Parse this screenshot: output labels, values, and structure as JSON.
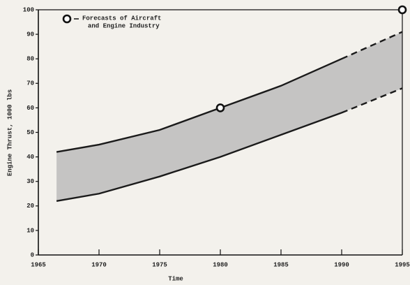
{
  "chart_data": {
    "type": "band",
    "xlabel": "Time",
    "ylabel": "Engine Thrust, 1000 lbs",
    "xlim": [
      1965,
      1995
    ],
    "ylim": [
      0,
      100
    ],
    "xticks": [
      1965,
      1970,
      1975,
      1980,
      1985,
      1990,
      1995
    ],
    "yticks": [
      0,
      10,
      20,
      30,
      40,
      50,
      60,
      70,
      80,
      90,
      100
    ],
    "band_color": "#bcbcbc",
    "line_color": "#1a1a1a",
    "dashed_from": 1990,
    "lines": [
      {
        "x": [
          1966.5,
          1970,
          1975,
          1980,
          1985,
          1990,
          1995
        ],
        "values": [
          42,
          45,
          51,
          60,
          69,
          80,
          91
        ]
      },
      {
        "x": [
          1966.5,
          1970,
          1975,
          1980,
          1985,
          1990,
          1995
        ],
        "values": [
          22,
          25,
          32,
          40,
          49,
          58,
          68
        ]
      }
    ],
    "points": {
      "x": [
        1980,
        1995
      ],
      "values": [
        60,
        100
      ]
    },
    "annotations": [
      "Forecasts of Aircraft",
      "and Engine Industry"
    ]
  }
}
